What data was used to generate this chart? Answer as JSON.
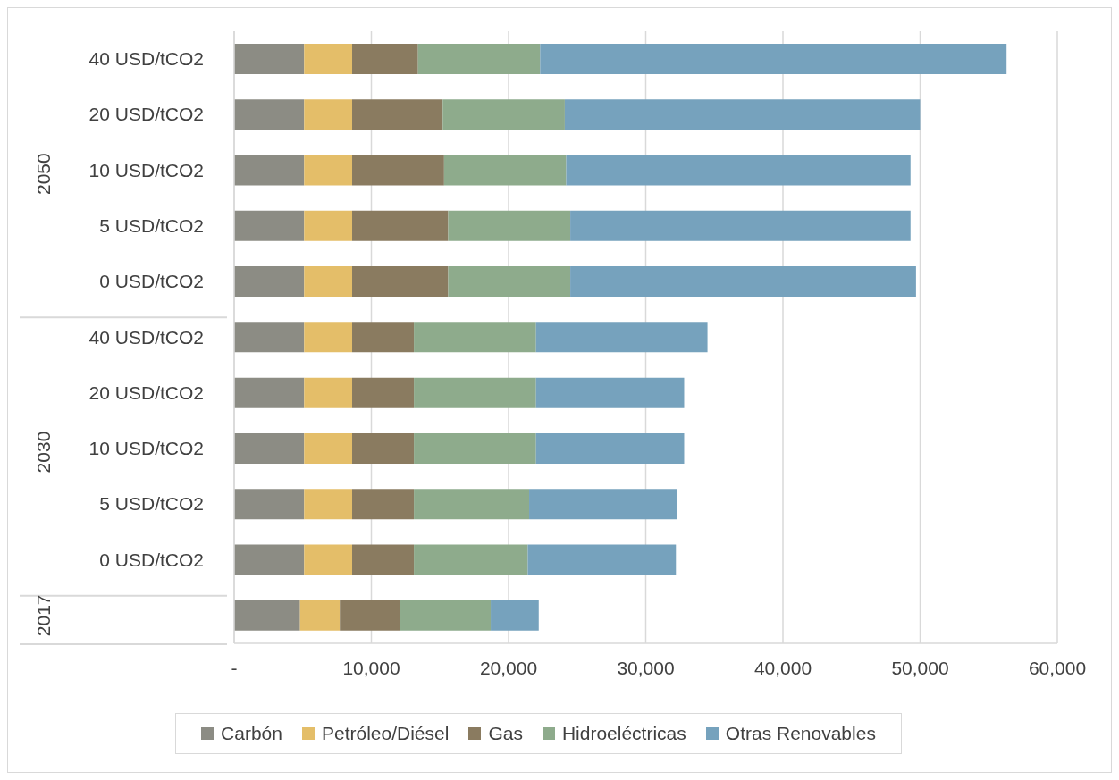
{
  "chart_data": {
    "type": "bar",
    "orientation": "horizontal",
    "stacked": true,
    "categories": [
      "40 USD/tCO2",
      "20 USD/tCO2",
      "10 USD/tCO2",
      "5 USD/tCO2",
      "0 USD/tCO2",
      "40 USD/tCO2",
      "20 USD/tCO2",
      "10 USD/tCO2",
      "5 USD/tCO2",
      "0 USD/tCO2",
      null
    ],
    "series": [
      {
        "name": "Carbón",
        "color": "#8c8c84",
        "values": [
          5100,
          5100,
          5100,
          5100,
          5100,
          5100,
          5100,
          5100,
          5100,
          5100,
          4800
        ]
      },
      {
        "name": "Petróleo/Diésel",
        "color": "#e4be69",
        "values": [
          3500,
          3500,
          3500,
          3500,
          3500,
          3500,
          3500,
          3500,
          3500,
          3500,
          2900
        ]
      },
      {
        "name": "Gas",
        "color": "#8a7b60",
        "values": [
          4800,
          6600,
          6700,
          7000,
          7000,
          4500,
          4500,
          4500,
          4500,
          4500,
          4400
        ]
      },
      {
        "name": "Hidroeléctricas",
        "color": "#8eab8c",
        "values": [
          8900,
          8900,
          8900,
          8900,
          8900,
          8900,
          8900,
          8900,
          8400,
          8300,
          6600
        ]
      },
      {
        "name": "Otras Renovables",
        "color": "#76a2bd",
        "values": [
          34000,
          25900,
          25100,
          24800,
          25200,
          12500,
          10800,
          10800,
          10800,
          10800,
          3500
        ]
      }
    ],
    "xlim": [
      0,
      60000
    ],
    "xticks": [
      {
        "value": 0,
        "label": "-"
      },
      {
        "value": 10000,
        "label": "10,000"
      },
      {
        "value": 20000,
        "label": "20,000"
      },
      {
        "value": 30000,
        "label": "30,000"
      },
      {
        "value": 40000,
        "label": "40,000"
      },
      {
        "value": 50000,
        "label": "50,000"
      },
      {
        "value": 60000,
        "label": "60,000"
      }
    ],
    "grid": "x",
    "legend": "bottom",
    "annotations": [
      "2050",
      "2030",
      "2017"
    ]
  }
}
